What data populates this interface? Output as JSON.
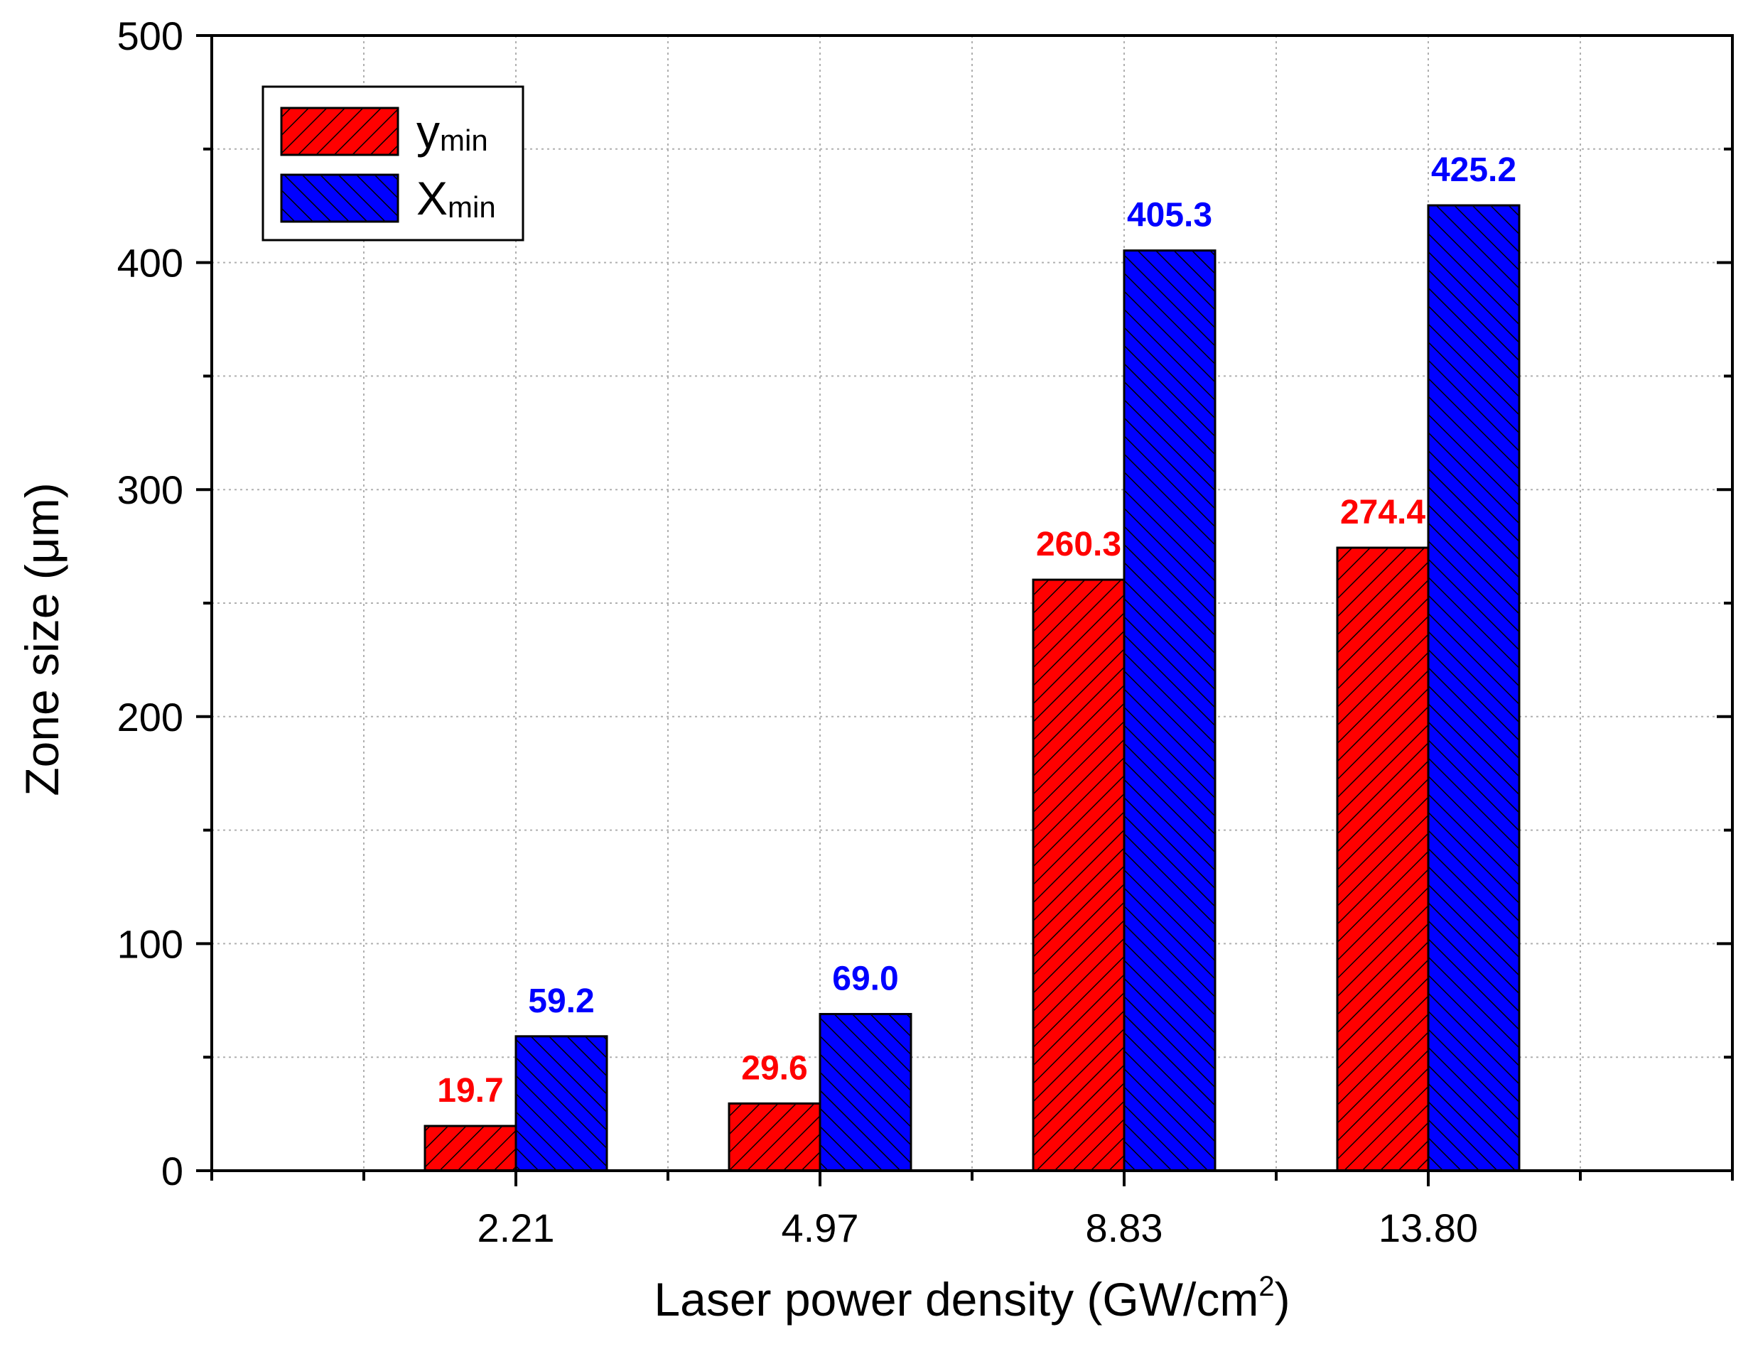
{
  "chart_data": {
    "type": "bar",
    "categories": [
      "2.21",
      "4.97",
      "8.83",
      "13.80"
    ],
    "series": [
      {
        "name": "y",
        "name_sub": "min",
        "color": "#ff0000",
        "label_color": "#ff0000",
        "values": [
          19.7,
          29.6,
          260.3,
          274.4
        ],
        "value_labels": [
          "19.7",
          "29.6",
          "260.3",
          "274.4"
        ]
      },
      {
        "name": "X",
        "name_sub": "min",
        "color": "#0000ff",
        "label_color": "#0000ff",
        "values": [
          59.2,
          69.0,
          405.3,
          425.2
        ],
        "value_labels": [
          "59.2",
          "69.0",
          "405.3",
          "425.2"
        ]
      }
    ],
    "xlabel": "Laser power density (GW/cm",
    "xlabel_sup": "2",
    "xlabel_end": ")",
    "ylabel": "Zone size (μm)",
    "ylim": [
      0,
      500
    ],
    "yticks": [
      0,
      100,
      200,
      300,
      400,
      500
    ],
    "yticks_minor": [
      50,
      150,
      250,
      350,
      450
    ],
    "x_slots": 10,
    "category_slot_positions": [
      2,
      4,
      6,
      8
    ],
    "grid": true,
    "legend": "top-left"
  }
}
